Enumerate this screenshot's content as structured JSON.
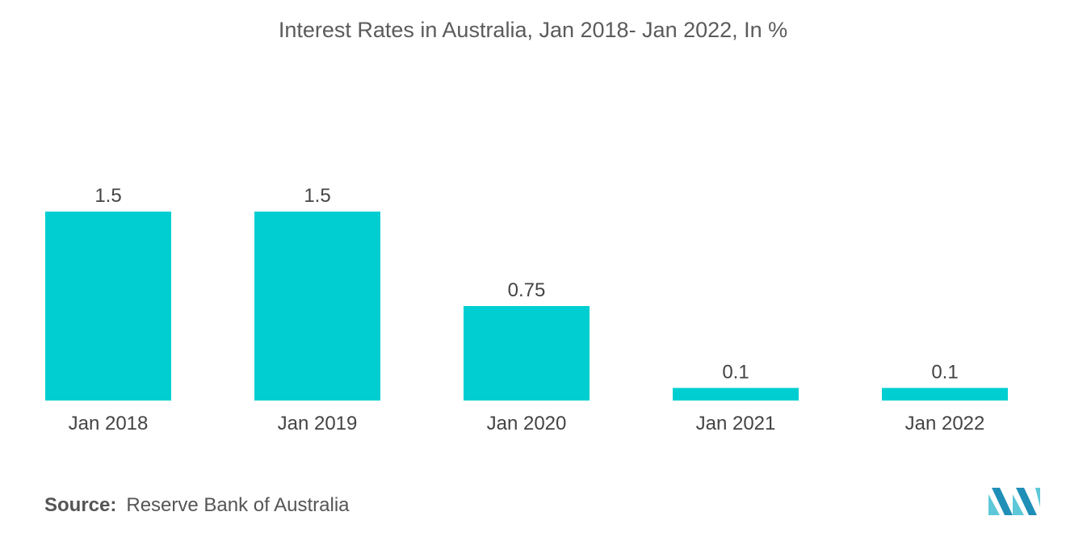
{
  "chart_data": {
    "type": "bar",
    "title": "Interest Rates in Australia, Jan 2018- Jan 2022, In %",
    "categories": [
      "Jan 2018",
      "Jan 2019",
      "Jan 2020",
      "Jan 2021",
      "Jan 2022"
    ],
    "values": [
      1.5,
      1.5,
      0.75,
      0.1,
      0.1
    ],
    "value_labels": [
      "1.5",
      "1.5",
      "0.75",
      "0.1",
      "0.1"
    ],
    "xlabel": "",
    "ylabel": "",
    "ylim": [
      0,
      1.5
    ],
    "grid": false,
    "bar_color": "#00CED1"
  },
  "source": {
    "label": "Source:",
    "text": "Reserve Bank of Australia"
  },
  "logo": {
    "icon": "mordor-logo-icon",
    "colors": [
      "#1F8FB8",
      "#5CC8D8"
    ]
  }
}
